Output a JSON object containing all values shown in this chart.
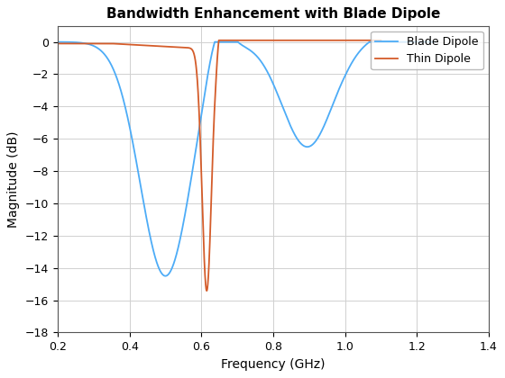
{
  "title": "Bandwidth Enhancement with Blade Dipole",
  "xlabel": "Frequency (GHz)",
  "ylabel": "Magnitude (dB)",
  "xlim": [
    0.2,
    1.4
  ],
  "ylim": [
    -18,
    1
  ],
  "xticks": [
    0.2,
    0.4,
    0.6,
    0.8,
    1.0,
    1.2,
    1.4
  ],
  "yticks": [
    0,
    -2,
    -4,
    -6,
    -8,
    -10,
    -12,
    -14,
    -16,
    -18
  ],
  "blade_color": "#4dacf7",
  "thin_color": "#d45c2a",
  "legend_labels": [
    "Blade Dipole",
    "Thin Dipole"
  ],
  "background_color": "#ffffff",
  "grid_color": "#d0d0d0",
  "linewidth": 1.3
}
